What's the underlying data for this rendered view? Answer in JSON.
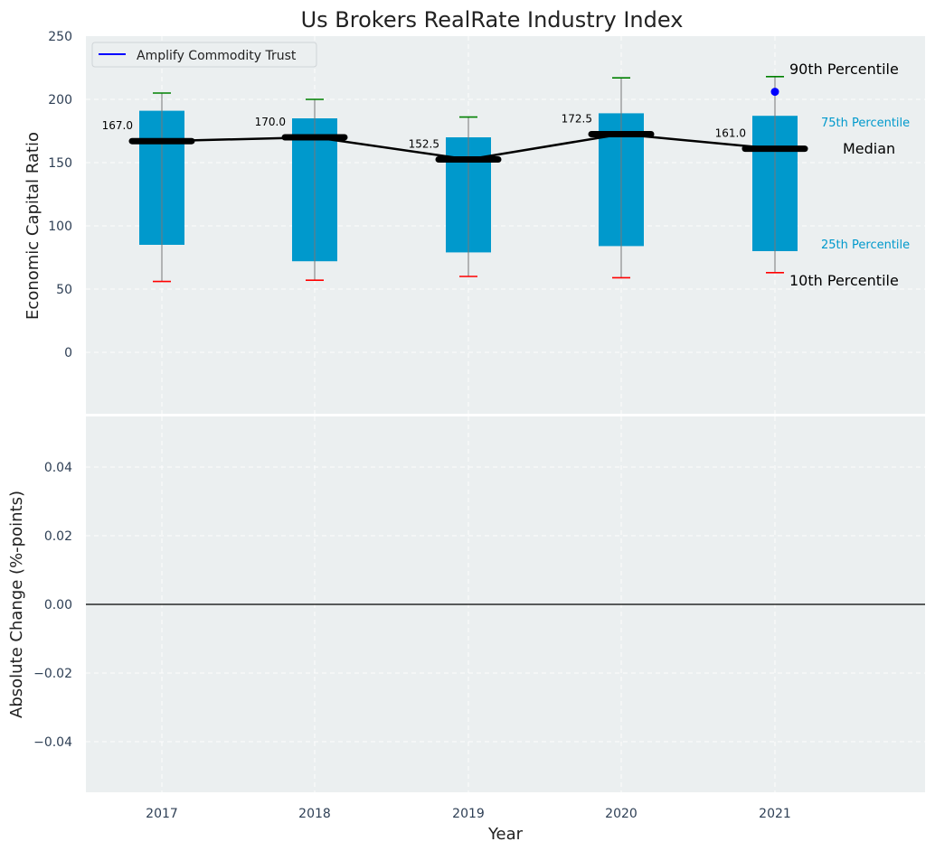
{
  "chart_data": [
    {
      "type": "box",
      "title": "Us Brokers RealRate Industry Index",
      "ylabel": "Economic Capital Ratio",
      "ylim": [
        -50,
        250
      ],
      "yticks": [
        "0",
        "50",
        "100",
        "150",
        "200",
        "250"
      ],
      "categories": [
        "2017",
        "2018",
        "2019",
        "2020",
        "2021"
      ],
      "p10": [
        56,
        57,
        60,
        59,
        63
      ],
      "p25": [
        85,
        72,
        79,
        84,
        80
      ],
      "median": [
        167.0,
        170.0,
        152.5,
        172.5,
        161.0
      ],
      "median_labels": [
        "167.0",
        "170.0",
        "152.5",
        "172.5",
        "161.0"
      ],
      "p75": [
        191,
        185,
        170,
        189,
        187
      ],
      "p90": [
        205,
        200,
        186,
        217,
        218
      ],
      "series": [
        {
          "name": "Amplify Commodity Trust",
          "x": [
            "2021"
          ],
          "values": [
            206
          ],
          "color": "#0000ff"
        }
      ],
      "legend_position": "top-left",
      "annotations": {
        "p90": "90th Percentile",
        "p75": "75th Percentile",
        "median": "Median",
        "p25": "25th Percentile",
        "p10": "10th Percentile"
      },
      "colors": {
        "box": "#0099cc",
        "p90_cap": "#008000",
        "p10_cap": "#ff0000",
        "median": "#000000",
        "panel_bg": "#ebeff0"
      },
      "grid": true
    },
    {
      "type": "line",
      "xlabel": "Year",
      "ylabel": "Absolute Change (%-points)",
      "ylim": [
        -0.055,
        0.055
      ],
      "yticks": [
        "−0.04",
        "−0.02",
        "0.00",
        "0.02",
        "0.04"
      ],
      "categories": [
        "2017",
        "2018",
        "2019",
        "2020",
        "2021"
      ],
      "zero_line": true,
      "grid": true
    }
  ]
}
